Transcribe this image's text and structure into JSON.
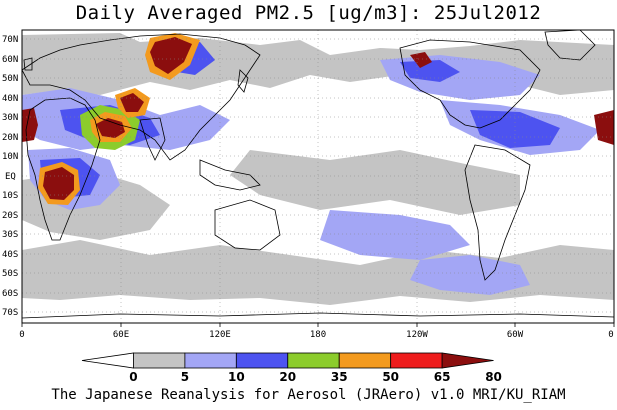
{
  "title": "Daily Averaged PM2.5 [ug/m3]: 25Jul2012",
  "footer": "The Japanese Reanalysis for Aerosol (JRAero) v1.0 MRI/KU_RIAM",
  "lat_labels": [
    "70N",
    "60N",
    "50N",
    "40N",
    "30N",
    "20N",
    "10N",
    "EQ",
    "10S",
    "20S",
    "30S",
    "40S",
    "50S",
    "60S",
    "70S"
  ],
  "lon_labels": [
    "0",
    "60E",
    "120E",
    "180",
    "120W",
    "60W",
    "0"
  ],
  "colorbar": {
    "levels": [
      "0",
      "5",
      "10",
      "20",
      "35",
      "50",
      "65",
      "80"
    ],
    "colors": [
      "#ffffff",
      "#c4c4c4",
      "#a3a6f5",
      "#4d53f0",
      "#8ccc2c",
      "#f39a1e",
      "#ee1c1c",
      "#8b0e0e"
    ]
  },
  "colors": {
    "land_outline": "#000000",
    "grid": "#888888",
    "ocean_bg": "#ffffff"
  }
}
